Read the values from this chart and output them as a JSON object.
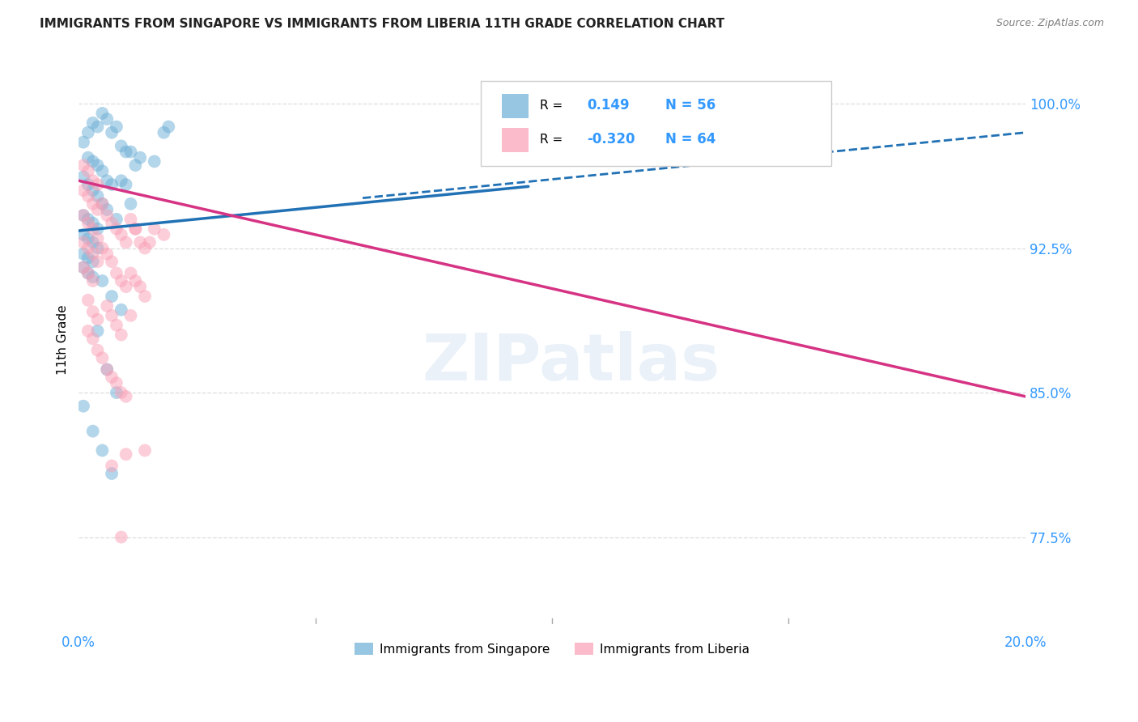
{
  "title": "IMMIGRANTS FROM SINGAPORE VS IMMIGRANTS FROM LIBERIA 11TH GRADE CORRELATION CHART",
  "source": "Source: ZipAtlas.com",
  "ylabel": "11th Grade",
  "yticks": [
    0.775,
    0.85,
    0.925,
    1.0
  ],
  "ytick_labels": [
    "77.5%",
    "85.0%",
    "92.5%",
    "100.0%"
  ],
  "xlim": [
    0.0,
    0.2
  ],
  "ylim": [
    0.73,
    1.025
  ],
  "watermark": "ZIPatlas",
  "legend_r_singapore": "0.149",
  "legend_n_singapore": "56",
  "legend_r_liberia": "-0.320",
  "legend_n_liberia": "64",
  "singapore_color": "#6baed6",
  "liberia_color": "#fa9fb5",
  "trend_singapore_color": "#2171b5",
  "trend_liberia_color": "#d63384",
  "singapore_points_x": [
    0.001,
    0.002,
    0.003,
    0.004,
    0.005,
    0.006,
    0.007,
    0.008,
    0.009,
    0.01,
    0.002,
    0.003,
    0.004,
    0.005,
    0.006,
    0.007,
    0.001,
    0.002,
    0.003,
    0.004,
    0.005,
    0.006,
    0.001,
    0.002,
    0.003,
    0.004,
    0.001,
    0.002,
    0.003,
    0.004,
    0.001,
    0.002,
    0.003,
    0.001,
    0.002,
    0.003,
    0.011,
    0.012,
    0.013,
    0.016,
    0.018,
    0.019,
    0.009,
    0.01,
    0.011,
    0.008,
    0.005,
    0.007,
    0.009,
    0.004,
    0.006,
    0.008,
    0.001,
    0.003,
    0.005,
    0.007
  ],
  "singapore_points_y": [
    0.98,
    0.985,
    0.99,
    0.988,
    0.995,
    0.992,
    0.985,
    0.988,
    0.978,
    0.975,
    0.972,
    0.97,
    0.968,
    0.965,
    0.96,
    0.958,
    0.962,
    0.958,
    0.955,
    0.952,
    0.948,
    0.945,
    0.942,
    0.94,
    0.938,
    0.935,
    0.932,
    0.93,
    0.928,
    0.925,
    0.922,
    0.92,
    0.918,
    0.915,
    0.912,
    0.91,
    0.975,
    0.968,
    0.972,
    0.97,
    0.985,
    0.988,
    0.96,
    0.958,
    0.948,
    0.94,
    0.908,
    0.9,
    0.893,
    0.882,
    0.862,
    0.85,
    0.843,
    0.83,
    0.82,
    0.808
  ],
  "liberia_points_x": [
    0.001,
    0.002,
    0.003,
    0.004,
    0.001,
    0.002,
    0.003,
    0.004,
    0.001,
    0.002,
    0.003,
    0.004,
    0.001,
    0.002,
    0.003,
    0.004,
    0.001,
    0.002,
    0.003,
    0.005,
    0.006,
    0.007,
    0.008,
    0.009,
    0.01,
    0.005,
    0.006,
    0.007,
    0.008,
    0.009,
    0.01,
    0.011,
    0.012,
    0.013,
    0.014,
    0.015,
    0.016,
    0.011,
    0.012,
    0.013,
    0.014,
    0.006,
    0.007,
    0.008,
    0.009,
    0.002,
    0.003,
    0.004,
    0.002,
    0.003,
    0.004,
    0.005,
    0.006,
    0.007,
    0.008,
    0.009,
    0.01,
    0.012,
    0.018,
    0.01,
    0.007,
    0.009,
    0.011,
    0.014
  ],
  "liberia_points_y": [
    0.968,
    0.965,
    0.96,
    0.958,
    0.955,
    0.952,
    0.948,
    0.945,
    0.942,
    0.938,
    0.935,
    0.93,
    0.928,
    0.925,
    0.922,
    0.918,
    0.915,
    0.912,
    0.908,
    0.948,
    0.942,
    0.938,
    0.935,
    0.932,
    0.928,
    0.925,
    0.922,
    0.918,
    0.912,
    0.908,
    0.905,
    0.94,
    0.935,
    0.928,
    0.925,
    0.928,
    0.935,
    0.912,
    0.908,
    0.905,
    0.9,
    0.895,
    0.89,
    0.885,
    0.88,
    0.898,
    0.892,
    0.888,
    0.882,
    0.878,
    0.872,
    0.868,
    0.862,
    0.858,
    0.855,
    0.85,
    0.848,
    0.935,
    0.932,
    0.818,
    0.812,
    0.775,
    0.89,
    0.82
  ],
  "trend_sg_x0": 0.0,
  "trend_sg_x1": 0.095,
  "trend_sg_y0": 0.934,
  "trend_sg_y1": 0.957,
  "trend_sg_dash_x0": 0.06,
  "trend_sg_dash_x1": 0.2,
  "trend_sg_dash_y0": 0.951,
  "trend_sg_dash_y1": 0.985,
  "trend_lib_x0": 0.0,
  "trend_lib_x1": 0.2,
  "trend_lib_y0": 0.96,
  "trend_lib_y1": 0.848
}
